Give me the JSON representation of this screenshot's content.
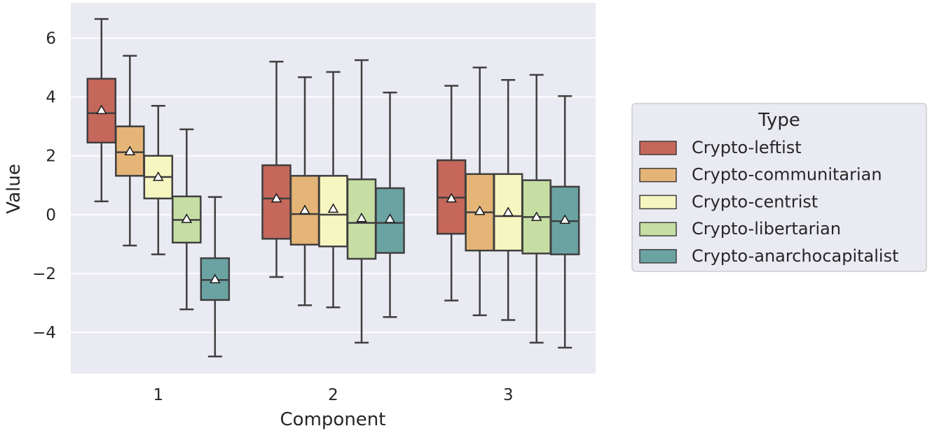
{
  "chart_data": {
    "type": "box",
    "xlabel": "Component",
    "ylabel": "Value",
    "categories": [
      "1",
      "2",
      "3"
    ],
    "yticks": [
      "−4",
      "−2",
      "0",
      "2",
      "4",
      "6"
    ],
    "ytick_values": [
      -4,
      -2,
      0,
      2,
      4,
      6
    ],
    "ylim": [
      -5.4,
      7.2
    ],
    "grid": true,
    "legend": {
      "title": "Type",
      "placement": "right",
      "entries": [
        "Crypto-leftist",
        "Crypto-communitarian",
        "Crypto-centrist",
        "Crypto-libertarian",
        "Crypto-anarchocapitalist"
      ]
    },
    "colors": [
      "#c5675a",
      "#e5b577",
      "#f6f6c1",
      "#c6dea4",
      "#6ba3a3"
    ],
    "background_color": "#eaeaf2",
    "series": [
      {
        "name": "Crypto-leftist",
        "boxes": [
          {
            "whisker_low": 0.45,
            "q1": 2.45,
            "median": 3.45,
            "q3": 4.62,
            "whisker_high": 6.65,
            "mean": 3.55
          },
          {
            "whisker_low": -2.12,
            "q1": -0.82,
            "median": 0.55,
            "q3": 1.68,
            "whisker_high": 5.2,
            "mean": 0.55
          },
          {
            "whisker_low": -2.92,
            "q1": -0.65,
            "median": 0.58,
            "q3": 1.85,
            "whisker_high": 4.38,
            "mean": 0.55
          }
        ]
      },
      {
        "name": "Crypto-communitarian",
        "boxes": [
          {
            "whisker_low": -1.05,
            "q1": 1.32,
            "median": 2.12,
            "q3": 3.0,
            "whisker_high": 5.4,
            "mean": 2.15
          },
          {
            "whisker_low": -3.08,
            "q1": -1.02,
            "median": 0.02,
            "q3": 1.32,
            "whisker_high": 4.67,
            "mean": 0.15
          },
          {
            "whisker_low": -3.42,
            "q1": -1.22,
            "median": 0.08,
            "q3": 1.38,
            "whisker_high": 5.0,
            "mean": 0.12
          }
        ]
      },
      {
        "name": "Crypto-centrist",
        "boxes": [
          {
            "whisker_low": -1.35,
            "q1": 0.55,
            "median": 1.28,
            "q3": 2.0,
            "whisker_high": 3.7,
            "mean": 1.28
          },
          {
            "whisker_low": -3.15,
            "q1": -1.08,
            "median": 0.0,
            "q3": 1.32,
            "whisker_high": 4.85,
            "mean": 0.2
          },
          {
            "whisker_low": -3.58,
            "q1": -1.22,
            "median": -0.05,
            "q3": 1.38,
            "whisker_high": 4.58,
            "mean": 0.08
          }
        ]
      },
      {
        "name": "Crypto-libertarian",
        "boxes": [
          {
            "whisker_low": -3.22,
            "q1": -0.95,
            "median": -0.18,
            "q3": 0.62,
            "whisker_high": 2.9,
            "mean": -0.15
          },
          {
            "whisker_low": -4.35,
            "q1": -1.5,
            "median": -0.28,
            "q3": 1.2,
            "whisker_high": 5.25,
            "mean": -0.12
          },
          {
            "whisker_low": -4.35,
            "q1": -1.32,
            "median": -0.08,
            "q3": 1.17,
            "whisker_high": 4.75,
            "mean": -0.08
          }
        ]
      },
      {
        "name": "Crypto-anarchocapitalist",
        "boxes": [
          {
            "whisker_low": -4.82,
            "q1": -2.9,
            "median": -2.22,
            "q3": -1.48,
            "whisker_high": 0.6,
            "mean": -2.2
          },
          {
            "whisker_low": -3.48,
            "q1": -1.3,
            "median": -0.28,
            "q3": 0.9,
            "whisker_high": 4.15,
            "mean": -0.15
          },
          {
            "whisker_low": -4.52,
            "q1": -1.35,
            "median": -0.22,
            "q3": 0.95,
            "whisker_high": 4.03,
            "mean": -0.18
          }
        ]
      }
    ]
  }
}
